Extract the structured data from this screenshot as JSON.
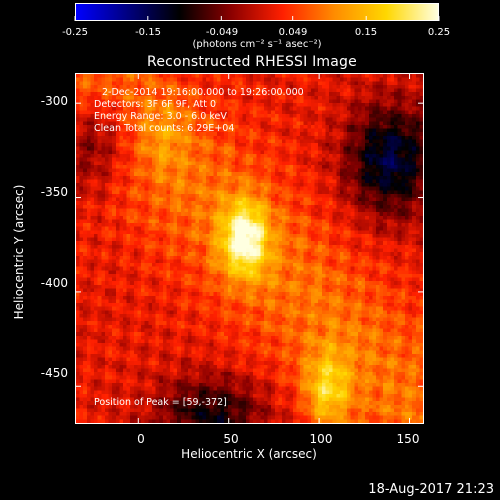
{
  "colorbar": {
    "ticks": [
      "-0.25",
      "-0.15",
      "-0.049",
      "0.049",
      "0.15",
      "0.25"
    ],
    "tick_values": [
      -0.25,
      -0.15,
      -0.049,
      0.049,
      0.15,
      0.25
    ],
    "units": "(photons cm⁻² s⁻¹ asec⁻²)",
    "range": [
      -0.25,
      0.25
    ],
    "colormap": [
      "#0000ff",
      "#000080",
      "#000000",
      "#8b0000",
      "#ff2000",
      "#ff8c00",
      "#ffd700",
      "#ffffe0"
    ]
  },
  "chart_data": {
    "type": "heatmap",
    "title": "Reconstructed RHESSI Image",
    "xlabel": "Heliocentric X (arcsec)",
    "ylabel": "Heliocentric Y (arcsec)",
    "xlim": [
      -35,
      158
    ],
    "ylim": [
      -470,
      -284
    ],
    "xticks": [
      "0",
      "50",
      "100",
      "150"
    ],
    "xtick_values": [
      0,
      50,
      100,
      150
    ],
    "yticks": [
      "-300",
      "-350",
      "-400",
      "-450"
    ],
    "ytick_values": [
      -300,
      -350,
      -400,
      -450
    ],
    "peak": [
      59,
      -372
    ],
    "sources": [
      {
        "x": 59,
        "y": -372,
        "peak": 0.25
      },
      {
        "x": 105,
        "y": -452,
        "peak": 0.19
      },
      {
        "x": 15,
        "y": -315,
        "peak": 0.1
      }
    ]
  },
  "annotations": {
    "time": "2-Dec-2014 19:16:00.000 to 19:26:00.000",
    "detectors": "Detectors: 3F 6F 9F, Att 0",
    "energy": "Energy Range: 3.0 - 6.0 keV",
    "clean": "Clean    Total counts: 6.29E+04",
    "peak_label": "Position of Peak = [59,-372]"
  },
  "footer": {
    "timestamp": "18-Aug-2017 21:23"
  }
}
